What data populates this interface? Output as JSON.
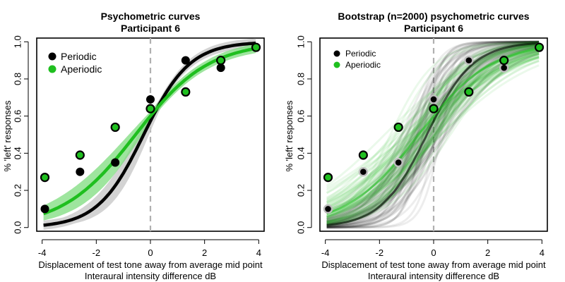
{
  "colors": {
    "periodic": "#000000",
    "aperiodic": "#1fbf1f",
    "aperiodic_band": "#7ddc7d",
    "periodic_band": "#c8c8c8",
    "midline": "#b0b0b0",
    "bootstrap_marker_border": "#bdbdbd"
  },
  "chart_data": [
    {
      "type": "scatter",
      "title": "Psychometric curves",
      "subtitle": "Participant 6",
      "xlabel": "Displacement of test tone away from average mid point",
      "xlabel2": "Interaural intensity difference dB",
      "ylabel": "% 'left' responses",
      "xlim": [
        -4.2,
        4.2
      ],
      "ylim": [
        -0.02,
        1.02
      ],
      "xticks": [
        "-4",
        "-2",
        "0",
        "2",
        "4"
      ],
      "yticks": [
        "0.0",
        "0.2",
        "0.4",
        "0.6",
        "0.8",
        "1.0"
      ],
      "vline": 0,
      "legend": {
        "position": "top-left",
        "entries": [
          "Periodic",
          "Aperiodic"
        ]
      },
      "series": [
        {
          "name": "Periodic",
          "x": [
            -3.9,
            -2.6,
            -1.3,
            0.0,
            1.3,
            2.6,
            3.9
          ],
          "y": [
            0.1,
            0.3,
            0.35,
            0.69,
            0.9,
            0.86,
            0.97
          ],
          "fit": {
            "mu": -0.25,
            "s": 0.85
          }
        },
        {
          "name": "Aperiodic",
          "x": [
            -3.9,
            -2.6,
            -1.3,
            0.0,
            1.3,
            2.6,
            3.9
          ],
          "y": [
            0.27,
            0.39,
            0.54,
            0.64,
            0.73,
            0.9,
            0.97
          ],
          "fit": {
            "mu": -0.55,
            "s": 1.35
          }
        }
      ]
    },
    {
      "type": "scatter",
      "title": "Bootstrap (n=2000) psychometric curves",
      "subtitle": "Participant 6",
      "xlabel": "Displacement of test tone away from average mid point",
      "xlabel2": "Interaural intensity difference dB",
      "ylabel": "% 'left' responses",
      "xlim": [
        -4.2,
        4.2
      ],
      "ylim": [
        -0.02,
        1.02
      ],
      "xticks": [
        "-4",
        "-2",
        "0",
        "2",
        "4"
      ],
      "yticks": [
        "0.0",
        "0.2",
        "0.4",
        "0.6",
        "0.8",
        "1.0"
      ],
      "vline": 0,
      "legend": {
        "position": "top-left",
        "entries": [
          "Periodic",
          "Aperiodic"
        ]
      },
      "series": [
        {
          "name": "Periodic",
          "x": [
            -3.9,
            -2.6,
            -1.3,
            0.0,
            1.3,
            2.6,
            3.9
          ],
          "y": [
            0.1,
            0.3,
            0.35,
            0.69,
            0.9,
            0.86,
            0.97
          ],
          "fit": {
            "mu": -0.25,
            "s": 0.85
          }
        },
        {
          "name": "Aperiodic",
          "x": [
            -3.9,
            -2.6,
            -1.3,
            0.0,
            1.3,
            2.6,
            3.9
          ],
          "y": [
            0.27,
            0.39,
            0.54,
            0.64,
            0.73,
            0.9,
            0.97
          ],
          "fit": {
            "mu": -0.55,
            "s": 1.35
          }
        }
      ]
    }
  ]
}
